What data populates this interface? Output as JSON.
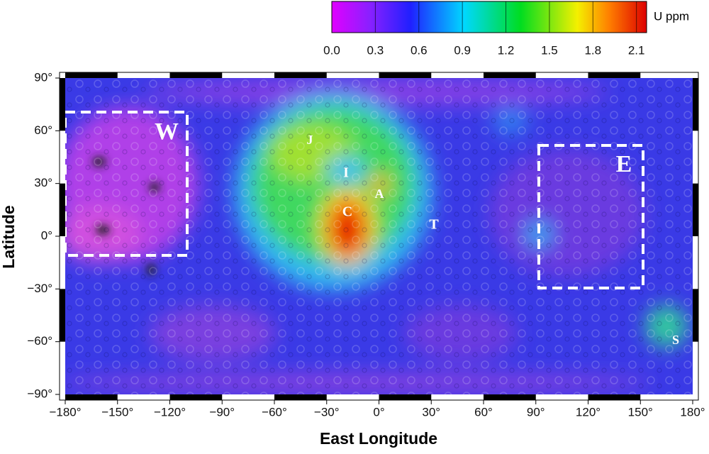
{
  "map": {
    "colorbar": {
      "label": "U ppm",
      "lim": [
        0,
        2.17
      ],
      "ticks": [
        {
          "value": 0,
          "label": "0.0"
        },
        0.3,
        0.6,
        0.9,
        1.2,
        1.5,
        1.8,
        2.1
      ]
    },
    "xlabel": "East Longitude",
    "ylabel": "Latitude",
    "xlim": [
      -180,
      180
    ],
    "ylim": [
      -90,
      90
    ],
    "xticks": [
      {
        "value": -180,
        "label": "−180°"
      },
      {
        "value": -150,
        "label": "−150°"
      },
      {
        "value": -120,
        "label": "−120°"
      },
      {
        "value": -90,
        "label": "−90°"
      },
      {
        "value": -60,
        "label": "−60°"
      },
      {
        "value": -30,
        "label": "−30°"
      },
      {
        "value": 0,
        "label": "0°"
      },
      {
        "value": 30,
        "label": "30°"
      },
      {
        "value": 60,
        "label": "60°"
      },
      {
        "value": 90,
        "label": "90°"
      },
      {
        "value": 120,
        "label": "120°"
      },
      {
        "value": 150,
        "label": "150°"
      },
      {
        "value": 180,
        "label": "180°"
      }
    ],
    "yticks": [
      {
        "value": 90,
        "label": "90°"
      },
      {
        "value": 60,
        "label": "60°"
      },
      {
        "value": 30,
        "label": "30°"
      },
      {
        "value": 0,
        "label": "0°"
      },
      {
        "value": -30,
        "label": "−30°"
      },
      {
        "value": -60,
        "label": "−60°"
      },
      {
        "value": -90,
        "label": "−90°"
      }
    ],
    "regions": [
      "W",
      "E",
      "J",
      "I",
      "A",
      "C",
      "T",
      "S"
    ]
  }
}
